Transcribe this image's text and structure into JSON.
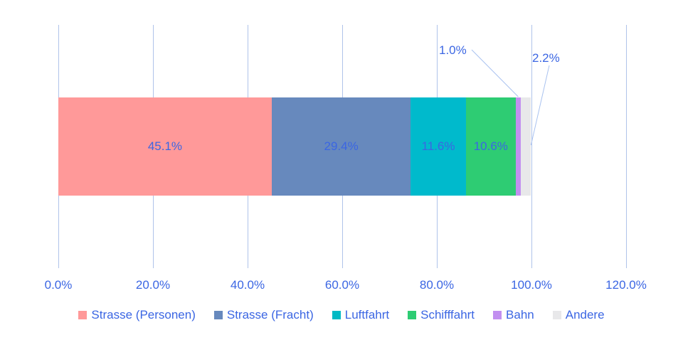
{
  "chart_data": {
    "type": "bar",
    "orientation": "horizontal-stacked",
    "title": "",
    "xlabel": "",
    "ylabel": "",
    "xlim": [
      0,
      120
    ],
    "grid": true,
    "legend_position": "bottom",
    "x_ticks": [
      {
        "value": 0,
        "label": "0.0%"
      },
      {
        "value": 20,
        "label": "20.0%"
      },
      {
        "value": 40,
        "label": "40.0%"
      },
      {
        "value": 60,
        "label": "60.0%"
      },
      {
        "value": 80,
        "label": "80.0%"
      },
      {
        "value": 100,
        "label": "100.0%"
      },
      {
        "value": 120,
        "label": "120.0%"
      }
    ],
    "segments": [
      {
        "name": "Strasse (Personen)",
        "value": 45.1,
        "label": "45.1%",
        "color": "#FF9999",
        "label_position": "inside"
      },
      {
        "name": "Strasse (Fracht)",
        "value": 29.4,
        "label": "29.4%",
        "color": "#6789BD",
        "label_position": "inside"
      },
      {
        "name": "Luftfahrt",
        "value": 11.6,
        "label": "11.6%",
        "color": "#00BACC",
        "label_position": "inside"
      },
      {
        "name": "Schifffahrt",
        "value": 10.6,
        "label": "10.6%",
        "color": "#2ECC73",
        "label_position": "inside"
      },
      {
        "name": "Bahn",
        "value": 1.0,
        "label": "1.0%",
        "color": "#C28FF0",
        "label_position": "callout"
      },
      {
        "name": "Andere",
        "value": 2.2,
        "label": "2.2%",
        "color": "#E8E8EA",
        "label_position": "callout"
      }
    ]
  },
  "legend": {
    "items": [
      {
        "label": "Strasse (Personen)",
        "color": "#FF9999"
      },
      {
        "label": "Strasse (Fracht)",
        "color": "#6789BD"
      },
      {
        "label": "Luftfahrt",
        "color": "#00BAC4"
      },
      {
        "label": "Schifffahrt",
        "color": "#2ECC73"
      },
      {
        "label": "Bahn",
        "color": "#C28FF0"
      },
      {
        "label": "Andere",
        "color": "#E8E8EA"
      }
    ]
  },
  "colors": {
    "background": "#FFFFFF",
    "label_text": "#3B66E3",
    "gridline": "#AFC3EA",
    "leader_line": "#A9C2F0"
  }
}
